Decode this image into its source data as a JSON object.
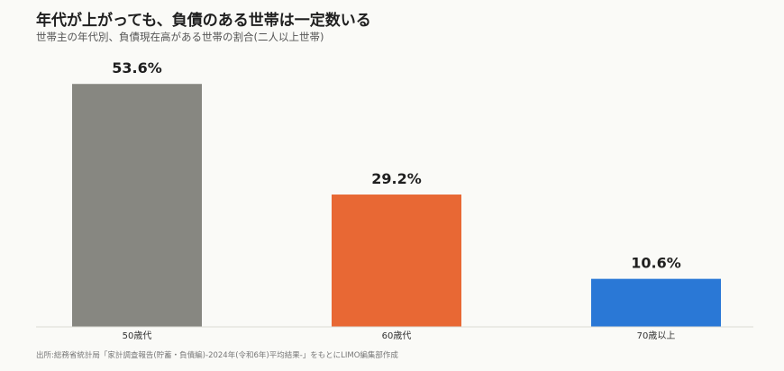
{
  "title": "年代が上がっても、負債のある世帯は一定数いる",
  "subtitle": "世帯主の年代別、負債現在高がある世帯の割合(二人以上世帯)",
  "source": "出所:総務省統計局「家計調査報告(貯蓄・負債編)-2024年(令和6年)平均結果-」をもとにLIMO編集部作成",
  "chart_data": {
    "type": "bar",
    "title": "年代が上がっても、負債のある世帯は一定数いる",
    "subtitle": "世帯主の年代別、負債現在高がある世帯の割合(二人以上世帯)",
    "categories": [
      "50歳代",
      "60歳代",
      "70歳以上"
    ],
    "values": [
      53.6,
      29.2,
      10.6
    ],
    "value_labels": [
      "53.6%",
      "29.2%",
      "10.6%"
    ],
    "colors": [
      "#878781",
      "#e86834",
      "#2a78d6"
    ],
    "xlabel": "",
    "ylabel": "",
    "ylim": [
      0,
      60
    ],
    "grid": false,
    "legend": "none"
  }
}
